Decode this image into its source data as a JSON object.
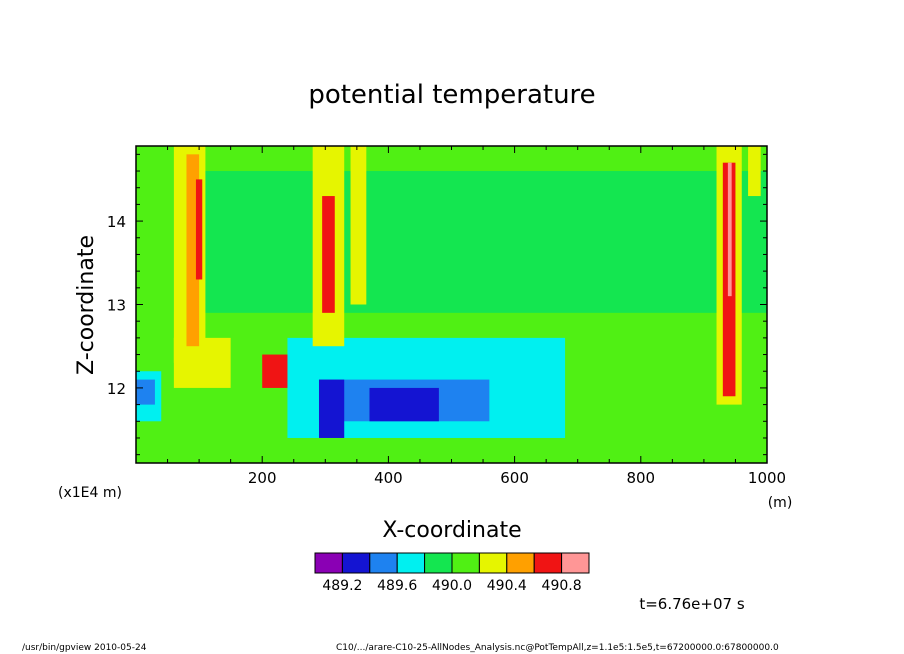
{
  "chart_data": {
    "type": "heatmap",
    "title": "potential temperature",
    "xlabel": "X-coordinate",
    "ylabel": "Z-coordinate",
    "x_unit": "(m)",
    "y_unit": "(x1E4 m)",
    "xlim": [
      0,
      1000
    ],
    "ylim": [
      11.1,
      14.9
    ],
    "x_ticks": [
      200,
      400,
      600,
      800,
      1000
    ],
    "y_ticks": [
      12,
      13,
      14
    ],
    "x_tick_labels": [
      "200",
      "400",
      "600",
      "800",
      "1000"
    ],
    "y_tick_labels": [
      "12",
      "13",
      "14"
    ],
    "levels": [
      {
        "value": 489.2,
        "color": "#8a00b4"
      },
      {
        "value": 489.4,
        "color": "#1414d2"
      },
      {
        "value": 489.6,
        "color": "#1e82f0"
      },
      {
        "value": 489.8,
        "color": "#00f0f0"
      },
      {
        "value": 490.0,
        "color": "#14e650"
      },
      {
        "value": 490.2,
        "color": "#50f014"
      },
      {
        "value": 490.4,
        "color": "#e6f500"
      },
      {
        "value": 490.6,
        "color": "#ffa000"
      },
      {
        "value": 490.8,
        "color": "#f01414"
      },
      {
        "value": 491.0,
        "color": "#ff9696"
      }
    ],
    "colorbar_labels": [
      "489.2",
      "489.6",
      "490.0",
      "490.4",
      "490.8"
    ],
    "regions": [
      {
        "level": 5,
        "x": [
          0,
          1000
        ],
        "y": [
          11.1,
          14.9
        ]
      },
      {
        "level": 4,
        "x": [
          0,
          1000
        ],
        "y": [
          12.9,
          14.6
        ]
      },
      {
        "level": 5,
        "x": [
          0,
          60
        ],
        "y": [
          12.5,
          14.9
        ]
      },
      {
        "level": 3,
        "x": [
          0,
          40
        ],
        "y": [
          11.6,
          12.2
        ]
      },
      {
        "level": 2,
        "x": [
          0,
          30
        ],
        "y": [
          11.8,
          12.1
        ]
      },
      {
        "level": 3,
        "x": [
          240,
          680
        ],
        "y": [
          11.4,
          12.6
        ]
      },
      {
        "level": 2,
        "x": [
          290,
          560
        ],
        "y": [
          11.6,
          12.1
        ]
      },
      {
        "level": 1,
        "x": [
          290,
          330
        ],
        "y": [
          11.4,
          12.1
        ]
      },
      {
        "level": 1,
        "x": [
          370,
          480
        ],
        "y": [
          11.6,
          12.0
        ]
      },
      {
        "level": 5,
        "x": [
          60,
          80
        ],
        "y": [
          11.9,
          12.1
        ]
      },
      {
        "level": 6,
        "x": [
          60,
          150
        ],
        "y": [
          12.0,
          12.6
        ]
      },
      {
        "level": 8,
        "x": [
          200,
          240
        ],
        "y": [
          12.0,
          12.4
        ]
      },
      {
        "level": 6,
        "x": [
          60,
          110
        ],
        "y": [
          12.3,
          14.9
        ]
      },
      {
        "level": 7,
        "x": [
          80,
          100
        ],
        "y": [
          12.5,
          14.8
        ]
      },
      {
        "level": 8,
        "x": [
          95,
          105
        ],
        "y": [
          13.3,
          14.5
        ]
      },
      {
        "level": 6,
        "x": [
          280,
          330
        ],
        "y": [
          12.5,
          14.9
        ]
      },
      {
        "level": 8,
        "x": [
          295,
          315
        ],
        "y": [
          12.9,
          14.3
        ]
      },
      {
        "level": 6,
        "x": [
          340,
          365
        ],
        "y": [
          13.0,
          14.9
        ]
      },
      {
        "level": 6,
        "x": [
          920,
          960
        ],
        "y": [
          11.8,
          14.9
        ]
      },
      {
        "level": 8,
        "x": [
          930,
          950
        ],
        "y": [
          11.9,
          14.7
        ]
      },
      {
        "level": 9,
        "x": [
          938,
          944
        ],
        "y": [
          13.1,
          14.7
        ]
      },
      {
        "level": 6,
        "x": [
          970,
          990
        ],
        "y": [
          14.3,
          14.9
        ]
      }
    ]
  },
  "time_label": "t=6.76e+07 s",
  "footer": {
    "program": "/usr/bin/gpview   2010-05-24",
    "source": "C10/.../arare-C10-25-AllNodes_Analysis.nc@PotTempAll,z=1.1e5:1.5e5,t=67200000.0:67800000.0"
  }
}
